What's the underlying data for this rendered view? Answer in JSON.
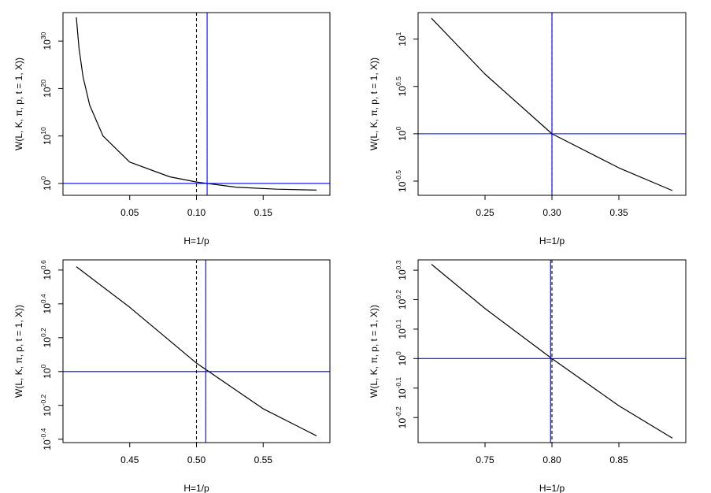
{
  "colors": {
    "curve": "#000000",
    "reference": "#0000FF",
    "dashed": "#000000",
    "frame": "#000000"
  },
  "chart_data": [
    {
      "type": "line",
      "xlabel": "H=1/p",
      "ylabel": "W(L, K, π, p, t = 1, X))",
      "xlim": [
        0.0,
        0.2
      ],
      "x_ticks": [
        0.05,
        0.1,
        0.15
      ],
      "x_tick_labels": [
        "0.05",
        "0.10",
        "0.15"
      ],
      "ylog_range": [
        -2.5,
        36.0
      ],
      "y_ticks": [
        0,
        10,
        20,
        30
      ],
      "y_tick_base": "10",
      "y_tick_exps": [
        "0",
        "10",
        "20",
        "30"
      ],
      "series": [
        {
          "name": "W",
          "x": [
            0.01,
            0.012,
            0.015,
            0.02,
            0.03,
            0.05,
            0.08,
            0.1,
            0.13,
            0.16,
            0.19
          ],
          "log10_y": [
            35,
            28.5,
            22.5,
            16.5,
            10,
            4.5,
            1.4,
            0.3,
            -0.8,
            -1.2,
            -1.4
          ]
        }
      ],
      "dashed_vline": 0.1,
      "blue_vline": 0.108,
      "blue_hline_log10": 0
    },
    {
      "type": "line",
      "xlabel": "H=1/p",
      "ylabel": "W(L, K, π, p, t = 1, X))",
      "xlim": [
        0.2,
        0.4
      ],
      "x_ticks": [
        0.25,
        0.3,
        0.35
      ],
      "x_tick_labels": [
        "0.25",
        "0.30",
        "0.35"
      ],
      "ylog_range": [
        -0.65,
        1.28
      ],
      "y_ticks": [
        -0.5,
        0,
        0.5,
        1
      ],
      "y_tick_base": "10",
      "y_tick_exps": [
        "-0.5",
        "0",
        "0.5",
        "1"
      ],
      "series": [
        {
          "name": "W",
          "x": [
            0.21,
            0.25,
            0.3,
            0.35,
            0.39
          ],
          "log10_y": [
            1.22,
            0.63,
            0.0,
            -0.36,
            -0.6
          ]
        }
      ],
      "dashed_vline": 0.3,
      "blue_vline": 0.3,
      "blue_hline_log10": 0
    },
    {
      "type": "line",
      "xlabel": "H=1/p",
      "ylabel": "W(L, K, π, p, t = 1, X))",
      "xlim": [
        0.4,
        0.6
      ],
      "x_ticks": [
        0.45,
        0.5,
        0.55
      ],
      "x_tick_labels": [
        "0.45",
        "0.50",
        "0.55"
      ],
      "ylog_range": [
        -0.42,
        0.66
      ],
      "y_ticks": [
        -0.4,
        -0.2,
        0,
        0.2,
        0.4,
        0.6
      ],
      "y_tick_base": "10",
      "y_tick_exps": [
        "-0.4",
        "-0.2",
        "0",
        "0.2",
        "0.4",
        "0.6"
      ],
      "series": [
        {
          "name": "W",
          "x": [
            0.41,
            0.45,
            0.5,
            0.55,
            0.59
          ],
          "log10_y": [
            0.62,
            0.38,
            0.05,
            -0.22,
            -0.38
          ]
        }
      ],
      "dashed_vline": 0.5,
      "blue_vline": 0.507,
      "blue_hline_log10": 0
    },
    {
      "type": "line",
      "xlabel": "H=1/p",
      "ylabel": "W(L, K, π, p, t = 1, X))",
      "xlim": [
        0.7,
        0.9
      ],
      "x_ticks": [
        0.75,
        0.8,
        0.85
      ],
      "x_tick_labels": [
        "0.75",
        "0.80",
        "0.85"
      ],
      "ylog_range": [
        -0.285,
        0.335
      ],
      "y_ticks": [
        -0.2,
        -0.1,
        0,
        0.1,
        0.2,
        0.3
      ],
      "y_tick_base": "10",
      "y_tick_exps": [
        "-0.2",
        "-0.1",
        "0",
        "0.1",
        "0.2",
        "0.3"
      ],
      "series": [
        {
          "name": "W",
          "x": [
            0.71,
            0.75,
            0.8,
            0.85,
            0.89
          ],
          "log10_y": [
            0.32,
            0.17,
            0.0,
            -0.16,
            -0.27
          ]
        }
      ],
      "dashed_vline": 0.8,
      "blue_vline": 0.799,
      "blue_hline_log10": 0
    }
  ]
}
